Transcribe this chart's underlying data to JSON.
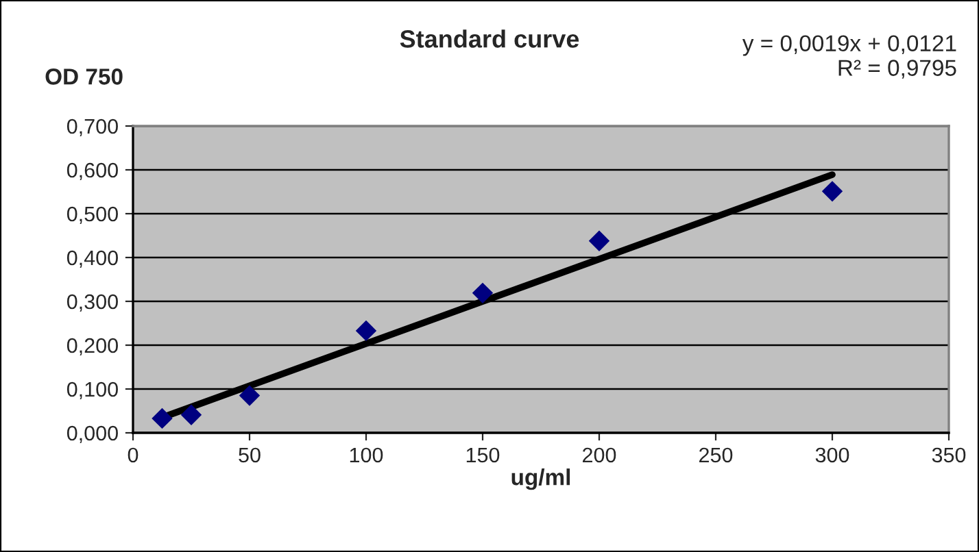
{
  "chart_data": {
    "type": "scatter",
    "title": "Standard curve",
    "xlabel": "ug/ml",
    "ylabel": "OD 750",
    "annotations": [
      "y = 0,0019x + 0,0121\nR² = 0,9795"
    ],
    "x": [
      12.5,
      25,
      50,
      100,
      150,
      200,
      300
    ],
    "series": [
      {
        "type": "scatter",
        "color": "#000080",
        "marker": "diamond",
        "values": [
          0.033,
          0.041,
          0.085,
          0.233,
          0.319,
          0.438,
          0.551
        ]
      },
      {
        "type": "line",
        "color": "#000000",
        "marker": "none",
        "x": [
          12.5,
          300
        ],
        "values": [
          0.035,
          0.589
        ]
      }
    ],
    "xlim": [
      0,
      350
    ],
    "xticks": [
      0,
      50,
      100,
      150,
      200,
      250,
      300,
      350
    ],
    "ylim": [
      0,
      0.7
    ],
    "yticks": [
      {
        "value": 0,
        "label": "0,000"
      },
      {
        "value": 0.1,
        "label": "0,100"
      },
      {
        "value": 0.2,
        "label": "0,200"
      },
      {
        "value": 0.3,
        "label": "0,300"
      },
      {
        "value": 0.4,
        "label": "0,400"
      },
      {
        "value": 0.5,
        "label": "0,500"
      },
      {
        "value": 0.6,
        "label": "0,600"
      },
      {
        "value": 0.7,
        "label": "0,700"
      }
    ],
    "grid": "y",
    "legend": false
  }
}
